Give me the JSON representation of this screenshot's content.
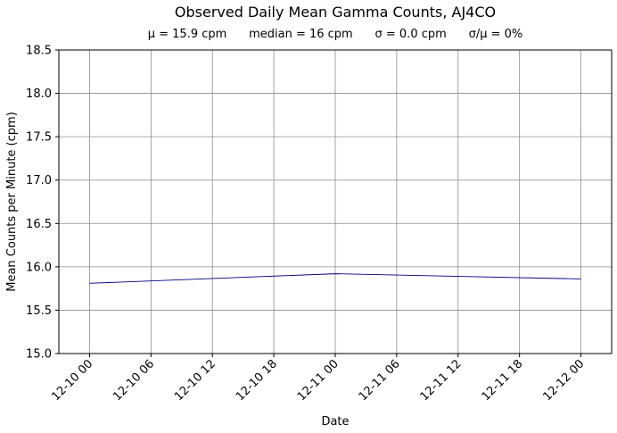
{
  "chart_data": {
    "type": "line",
    "title": "Observed Daily Mean Gamma Counts, AJ4CO",
    "subtitle": "μ = 15.9 cpm      median = 16 cpm      σ = 0.0 cpm      σ/μ = 0%",
    "xlabel": "Date",
    "ylabel": "Mean Counts per Minute (cpm)",
    "x_tick_labels": [
      "12-10 00",
      "12-10 06",
      "12-10 12",
      "12-10 18",
      "12-11 00",
      "12-11 06",
      "12-11 12",
      "12-11 18",
      "12-12 00"
    ],
    "y_tick_labels": [
      "15.0",
      "15.5",
      "16.0",
      "16.5",
      "17.0",
      "17.5",
      "18.0",
      "18.5"
    ],
    "ylim": [
      15.0,
      18.5
    ],
    "xlim": [
      "12-09 21",
      "12-12 03"
    ],
    "grid": true,
    "series": [
      {
        "color": "#000080",
        "x": [
          "12-10 00",
          "12-11 00",
          "12-12 00"
        ],
        "values": [
          15.81,
          15.92,
          15.86
        ]
      }
    ]
  }
}
